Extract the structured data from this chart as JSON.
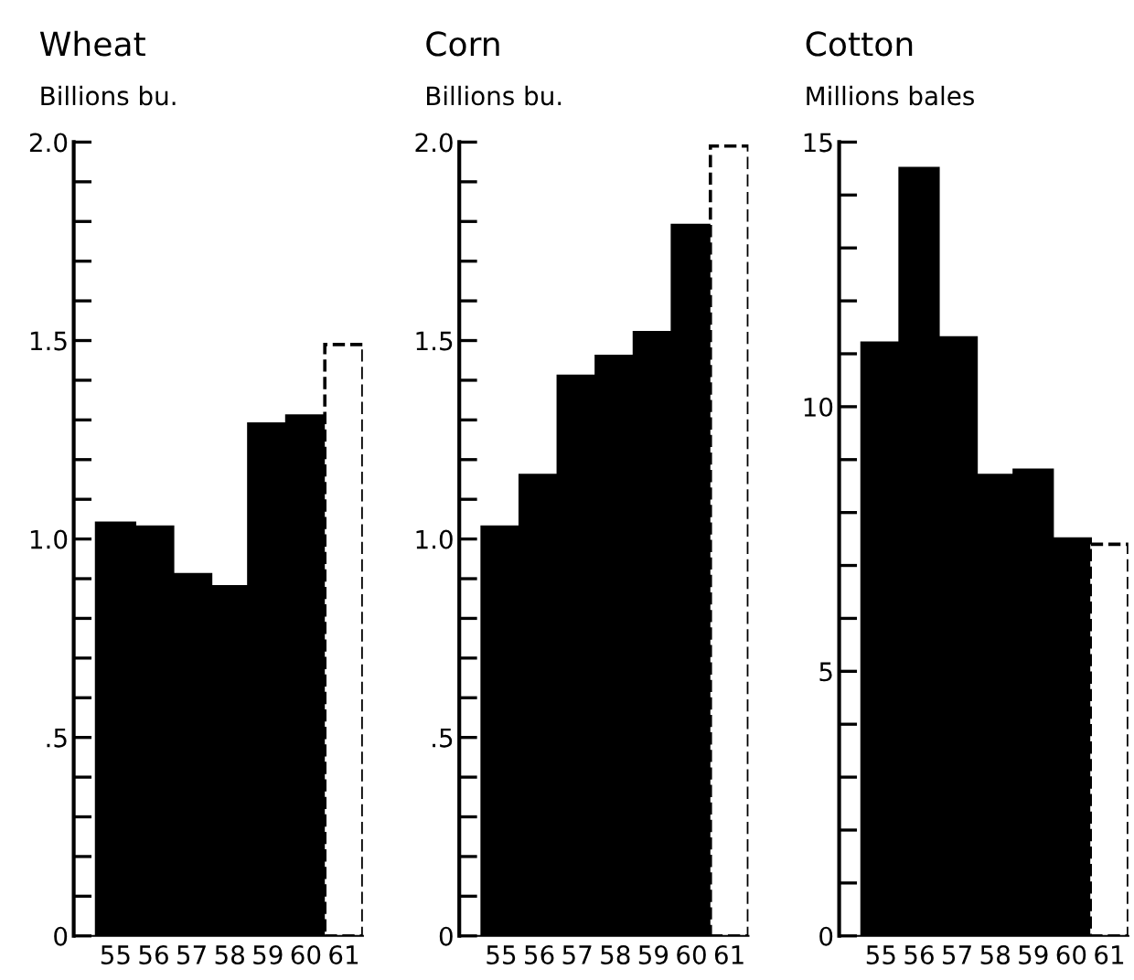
{
  "chart_data": [
    {
      "type": "bar",
      "title": "Wheat",
      "subtitle": "Billions bu.",
      "categories": [
        "55",
        "56",
        "57",
        "58",
        "59",
        "60",
        "61"
      ],
      "series": [
        {
          "color": "#000000",
          "values": [
            1.04,
            1.03,
            0.91,
            0.88,
            1.29,
            1.31,
            null
          ]
        },
        {
          "color": "#ffffff",
          "line_style": "dashed",
          "values": [
            null,
            null,
            null,
            null,
            null,
            null,
            1.49
          ]
        }
      ],
      "ylim": [
        0,
        2.0
      ],
      "yticks": [
        0,
        {
          "value": 0.1,
          "label": null
        },
        {
          "value": 0.2,
          "label": null
        },
        {
          "value": 0.3,
          "label": null
        },
        {
          "value": 0.4,
          "label": null
        },
        {
          "value": 0.5,
          "label": ".5"
        },
        {
          "value": 0.6,
          "label": null
        },
        {
          "value": 0.7,
          "label": null
        },
        {
          "value": 0.8,
          "label": null
        },
        {
          "value": 0.9,
          "label": null
        },
        {
          "value": 1.0,
          "label": "1.0"
        },
        {
          "value": 1.1,
          "label": null
        },
        {
          "value": 1.2,
          "label": null
        },
        {
          "value": 1.3,
          "label": null
        },
        {
          "value": 1.4,
          "label": null
        },
        {
          "value": 1.5,
          "label": "1.5"
        },
        {
          "value": 1.6,
          "label": null
        },
        {
          "value": 1.7,
          "label": null
        },
        {
          "value": 1.8,
          "label": null
        },
        {
          "value": 1.9,
          "label": null
        },
        {
          "value": 2.0,
          "label": "2.0"
        }
      ],
      "grid": false,
      "legend": false
    },
    {
      "type": "bar",
      "title": "Corn",
      "subtitle": "Billions bu.",
      "categories": [
        "55",
        "56",
        "57",
        "58",
        "59",
        "60",
        "61"
      ],
      "series": [
        {
          "color": "#000000",
          "values": [
            1.03,
            1.16,
            1.41,
            1.46,
            1.52,
            1.79,
            null
          ]
        },
        {
          "color": "#ffffff",
          "line_style": "dashed",
          "values": [
            null,
            null,
            null,
            null,
            null,
            null,
            1.99
          ]
        }
      ],
      "ylim": [
        0,
        2.0
      ],
      "yticks": [
        0,
        {
          "value": 0.1,
          "label": null
        },
        {
          "value": 0.2,
          "label": null
        },
        {
          "value": 0.3,
          "label": null
        },
        {
          "value": 0.4,
          "label": null
        },
        {
          "value": 0.5,
          "label": ".5"
        },
        {
          "value": 0.6,
          "label": null
        },
        {
          "value": 0.7,
          "label": null
        },
        {
          "value": 0.8,
          "label": null
        },
        {
          "value": 0.9,
          "label": null
        },
        {
          "value": 1.0,
          "label": "1.0"
        },
        {
          "value": 1.1,
          "label": null
        },
        {
          "value": 1.2,
          "label": null
        },
        {
          "value": 1.3,
          "label": null
        },
        {
          "value": 1.4,
          "label": null
        },
        {
          "value": 1.5,
          "label": "1.5"
        },
        {
          "value": 1.6,
          "label": null
        },
        {
          "value": 1.7,
          "label": null
        },
        {
          "value": 1.8,
          "label": null
        },
        {
          "value": 1.9,
          "label": null
        },
        {
          "value": 2.0,
          "label": "2.0"
        }
      ],
      "grid": false,
      "legend": false
    },
    {
      "type": "bar",
      "title": "Cotton",
      "subtitle": "Millions bales",
      "categories": [
        "55",
        "56",
        "57",
        "58",
        "59",
        "60",
        "61"
      ],
      "series": [
        {
          "color": "#000000",
          "values": [
            11.2,
            14.5,
            11.3,
            8.7,
            8.8,
            7.5,
            null
          ]
        },
        {
          "color": "#ffffff",
          "line_style": "dashed",
          "values": [
            null,
            null,
            null,
            null,
            null,
            null,
            7.4
          ]
        }
      ],
      "ylim": [
        0,
        15
      ],
      "yticks": [
        0,
        {
          "value": 1,
          "label": null
        },
        {
          "value": 2,
          "label": null
        },
        {
          "value": 3,
          "label": null
        },
        {
          "value": 4,
          "label": null
        },
        5,
        {
          "value": 6,
          "label": null
        },
        {
          "value": 7,
          "label": null
        },
        {
          "value": 8,
          "label": null
        },
        {
          "value": 9,
          "label": null
        },
        10,
        {
          "value": 11,
          "label": null
        },
        {
          "value": 12,
          "label": null
        },
        {
          "value": 13,
          "label": null
        },
        {
          "value": 14,
          "label": null
        },
        15
      ],
      "grid": false,
      "legend": false
    }
  ]
}
